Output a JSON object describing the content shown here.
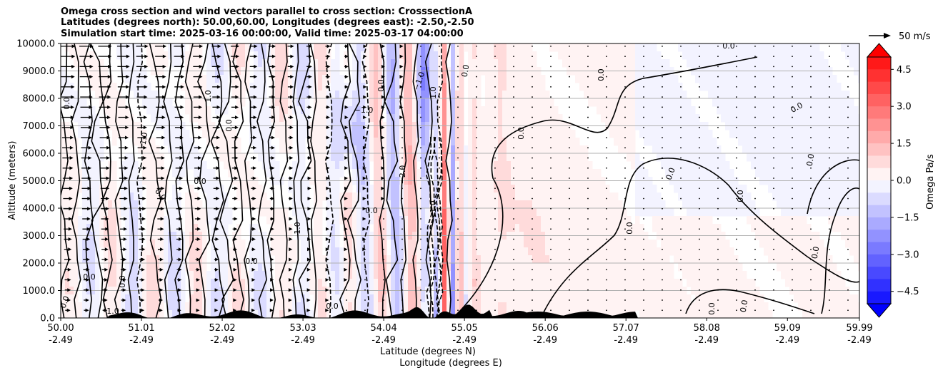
{
  "chart_data": {
    "type": "heatmap",
    "subtype": "contour cross-section with wind vectors",
    "title_lines": [
      "Omega cross section and wind vectors parallel to cross section: CrosssectionA",
      "Latitudes (degrees north): 50.00,60.00, Longitudes (degrees east): -2.50,-2.50",
      "Simulation start time: 2025-03-16 00:00:00, Valid time: 2025-03-17 04:00:00"
    ],
    "ylabel": "Altitude (meters)",
    "xlabel_lat": "Latitude (degrees N)",
    "xlabel_lon": "Longitude (degrees E)",
    "ylim": [
      0,
      10000
    ],
    "yticks": [
      "0.0",
      "1000.0",
      "2000.0",
      "3000.0",
      "4000.0",
      "5000.0",
      "6000.0",
      "7000.0",
      "8000.0",
      "9000.0",
      "10000.0"
    ],
    "xlim": [
      50.0,
      59.99
    ],
    "xticks": [
      {
        "lat": "50.00",
        "lon": "-2.49"
      },
      {
        "lat": "51.01",
        "lon": "-2.49"
      },
      {
        "lat": "52.02",
        "lon": "-2.49"
      },
      {
        "lat": "53.03",
        "lon": "-2.49"
      },
      {
        "lat": "54.04",
        "lon": "-2.49"
      },
      {
        "lat": "55.05",
        "lon": "-2.49"
      },
      {
        "lat": "56.06",
        "lon": "-2.49"
      },
      {
        "lat": "57.07",
        "lon": "-2.49"
      },
      {
        "lat": "58.08",
        "lon": "-2.49"
      },
      {
        "lat": "59.09",
        "lon": "-2.49"
      },
      {
        "lat": "59.99",
        "lon": "-2.49"
      }
    ],
    "grid": true,
    "colorbar": {
      "label": "Omega Pa/s",
      "range": [
        -5.0,
        5.0
      ],
      "ticks": [
        "4.5",
        "3.0",
        "1.5",
        "0.0",
        "−1.5",
        "−3.0",
        "−4.5"
      ],
      "colormap": "bwr",
      "extend": "both"
    },
    "quiver_key": {
      "label": "50 m/s"
    },
    "contour_levels": [
      -2.0,
      -1.0,
      0.0,
      1.0,
      2.0
    ],
    "contour_labels": [
      "0.0",
      "1.0",
      "−1.0",
      "2.0",
      "−2.0"
    ]
  },
  "colors": {
    "positive": "#ff0000",
    "negative": "#0000ff",
    "neutral": "#ffffff",
    "terrain": "#000000",
    "grid": "#b0b0b0"
  }
}
